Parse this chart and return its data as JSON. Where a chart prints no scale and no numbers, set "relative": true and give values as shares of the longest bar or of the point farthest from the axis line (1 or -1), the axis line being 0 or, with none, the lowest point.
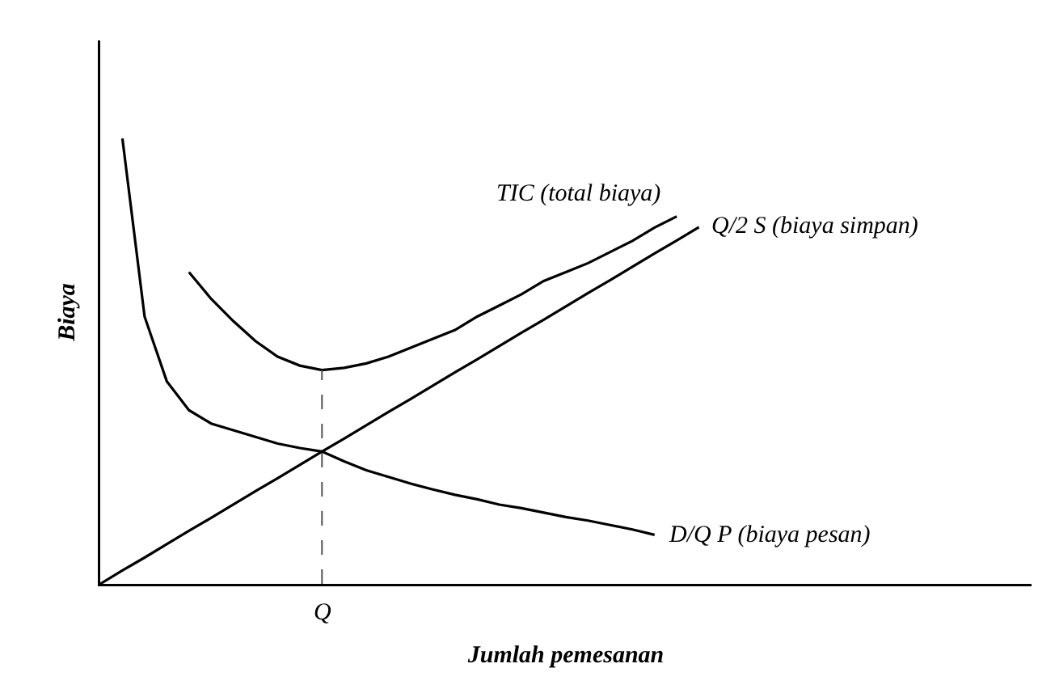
{
  "chart_data": {
    "type": "line",
    "relative": true,
    "xlabel": "Jumlah pemesanan",
    "ylabel": "Biaya",
    "legend": false,
    "annotations": [
      "Q"
    ],
    "marker": "none",
    "line_style": "solid",
    "categories": [
      null,
      null,
      null,
      null,
      null,
      null,
      null,
      null,
      null,
      null,
      null,
      null,
      null,
      null,
      null,
      null,
      null,
      null,
      null,
      null,
      null,
      null,
      null,
      null,
      null,
      null,
      null,
      null
    ],
    "series": [
      {
        "name": "TIC (total biaya)",
        "color": "#000000",
        "values": [
          null,
          null,
          null,
          null,
          0.7,
          0.64,
          0.59,
          0.545,
          0.51,
          0.49,
          0.48,
          0.485,
          0.495,
          0.51,
          0.53,
          0.55,
          0.57,
          0.6,
          0.625,
          0.65,
          0.68,
          0.7,
          0.72,
          0.745,
          0.77,
          0.8,
          0.825,
          null
        ]
      },
      {
        "name": "Q/2 S (biaya simpan)",
        "color": "#000000",
        "values": [
          0,
          0.03,
          0.059,
          0.089,
          0.119,
          0.148,
          0.178,
          0.208,
          0.237,
          0.267,
          0.297,
          0.326,
          0.356,
          0.386,
          0.415,
          0.445,
          0.475,
          0.504,
          0.534,
          0.564,
          0.593,
          0.623,
          0.653,
          0.682,
          0.712,
          0.742,
          0.771,
          0.801
        ]
      },
      {
        "name": "D/Q P (biaya pesan)",
        "color": "#000000",
        "values": [
          null,
          1.0,
          0.6,
          0.455,
          0.39,
          0.36,
          0.345,
          0.33,
          0.315,
          0.305,
          0.297,
          0.275,
          0.255,
          0.24,
          0.225,
          0.212,
          0.2,
          0.19,
          0.178,
          0.17,
          0.16,
          0.15,
          0.142,
          0.132,
          0.122,
          0.11,
          null,
          null
        ]
      }
    ]
  }
}
